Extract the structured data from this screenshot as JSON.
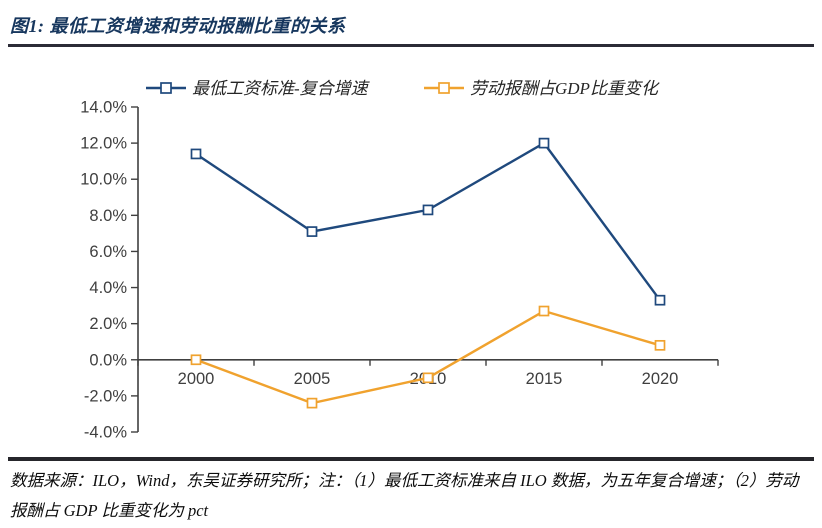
{
  "page": {
    "title": "图1: 最低工资增速和劳动报酬比重的关系",
    "footnote": "数据来源：ILO，Wind，东吴证券研究所；注：（1）最低工资标准来自 ILO 数据，为五年复合增速；（2）劳动报酬占 GDP 比重变化为 pct"
  },
  "colors": {
    "title_navy": "#17375E",
    "series1_blue": "#1F497D",
    "series2_orange": "#F0A22E",
    "axis_line": "#404040",
    "tick_text": "#3F3F3F",
    "divider": "#26262b"
  },
  "chart_data": {
    "type": "line",
    "title": "图1: 最低工资增速和劳动报酬比重的关系",
    "categories": [
      "2000",
      "2005",
      "2010",
      "2015",
      "2020"
    ],
    "series": [
      {
        "name": "最低工资标准-复合增速",
        "color": "#1F497D",
        "values": [
          11.4,
          7.1,
          8.3,
          12.0,
          3.3
        ]
      },
      {
        "name": "劳动报酬占GDP比重变化",
        "color": "#F0A22E",
        "values": [
          0.0,
          -2.4,
          -1.0,
          2.7,
          0.8
        ]
      }
    ],
    "ylim": [
      -4,
      14
    ],
    "ytick_step": 2,
    "ytick_labels": [
      "14.0%",
      "12.0%",
      "10.0%",
      "8.0%",
      "6.0%",
      "4.0%",
      "2.0%",
      "0.0%",
      "-2.0%",
      "-4.0%"
    ],
    "xlabel": "",
    "ylabel": "",
    "grid": false,
    "legend_position": "top-center",
    "marker": "hollow-square"
  }
}
